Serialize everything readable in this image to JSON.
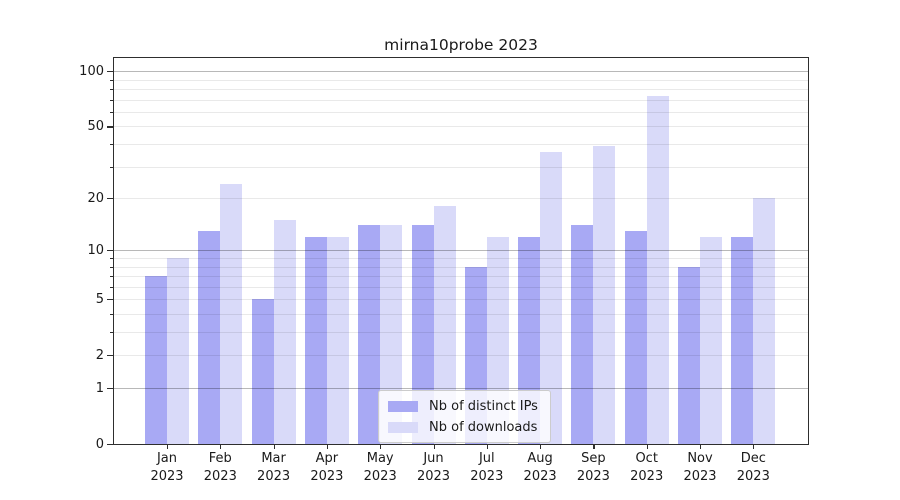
{
  "chart_data": {
    "type": "bar",
    "title": "mirna10probe 2023",
    "categories": [
      "Jan",
      "Feb",
      "Mar",
      "Apr",
      "May",
      "Jun",
      "Jul",
      "Aug",
      "Sep",
      "Oct",
      "Nov",
      "Dec"
    ],
    "category_year": "2023",
    "series": [
      {
        "name": "Nb of distinct IPs",
        "color": "#a8a9f4",
        "values": [
          7,
          13,
          5,
          12,
          14,
          14,
          8,
          12,
          14,
          13,
          8,
          12
        ]
      },
      {
        "name": "Nb of downloads",
        "color": "#d9daf9",
        "values": [
          9,
          24,
          15,
          12,
          14,
          18,
          12,
          36,
          39,
          73,
          12,
          20
        ]
      }
    ],
    "xlabel": "",
    "ylabel": "",
    "yscale": "log10(1+y)",
    "ylim": [
      0,
      117
    ],
    "ytick_labels": [
      100,
      50,
      20,
      10,
      5,
      2,
      1,
      0
    ],
    "major_gridlines": [
      1,
      10,
      100
    ],
    "minor_gridlines": [
      2,
      3,
      4,
      5,
      6,
      7,
      8,
      9,
      20,
      30,
      40,
      50,
      60,
      70,
      80,
      90
    ],
    "grid": true,
    "legend_position": "inside-bottom-center"
  },
  "colors": {
    "spine": "#2e2e2e",
    "text": "#1a1a1a",
    "major_grid": "rgba(0,0,0,0.28)",
    "minor_grid": "rgba(0,0,0,0.085)",
    "legend_border": "#cccccc",
    "legend_bg": "rgba(255,255,255,0.8)"
  }
}
